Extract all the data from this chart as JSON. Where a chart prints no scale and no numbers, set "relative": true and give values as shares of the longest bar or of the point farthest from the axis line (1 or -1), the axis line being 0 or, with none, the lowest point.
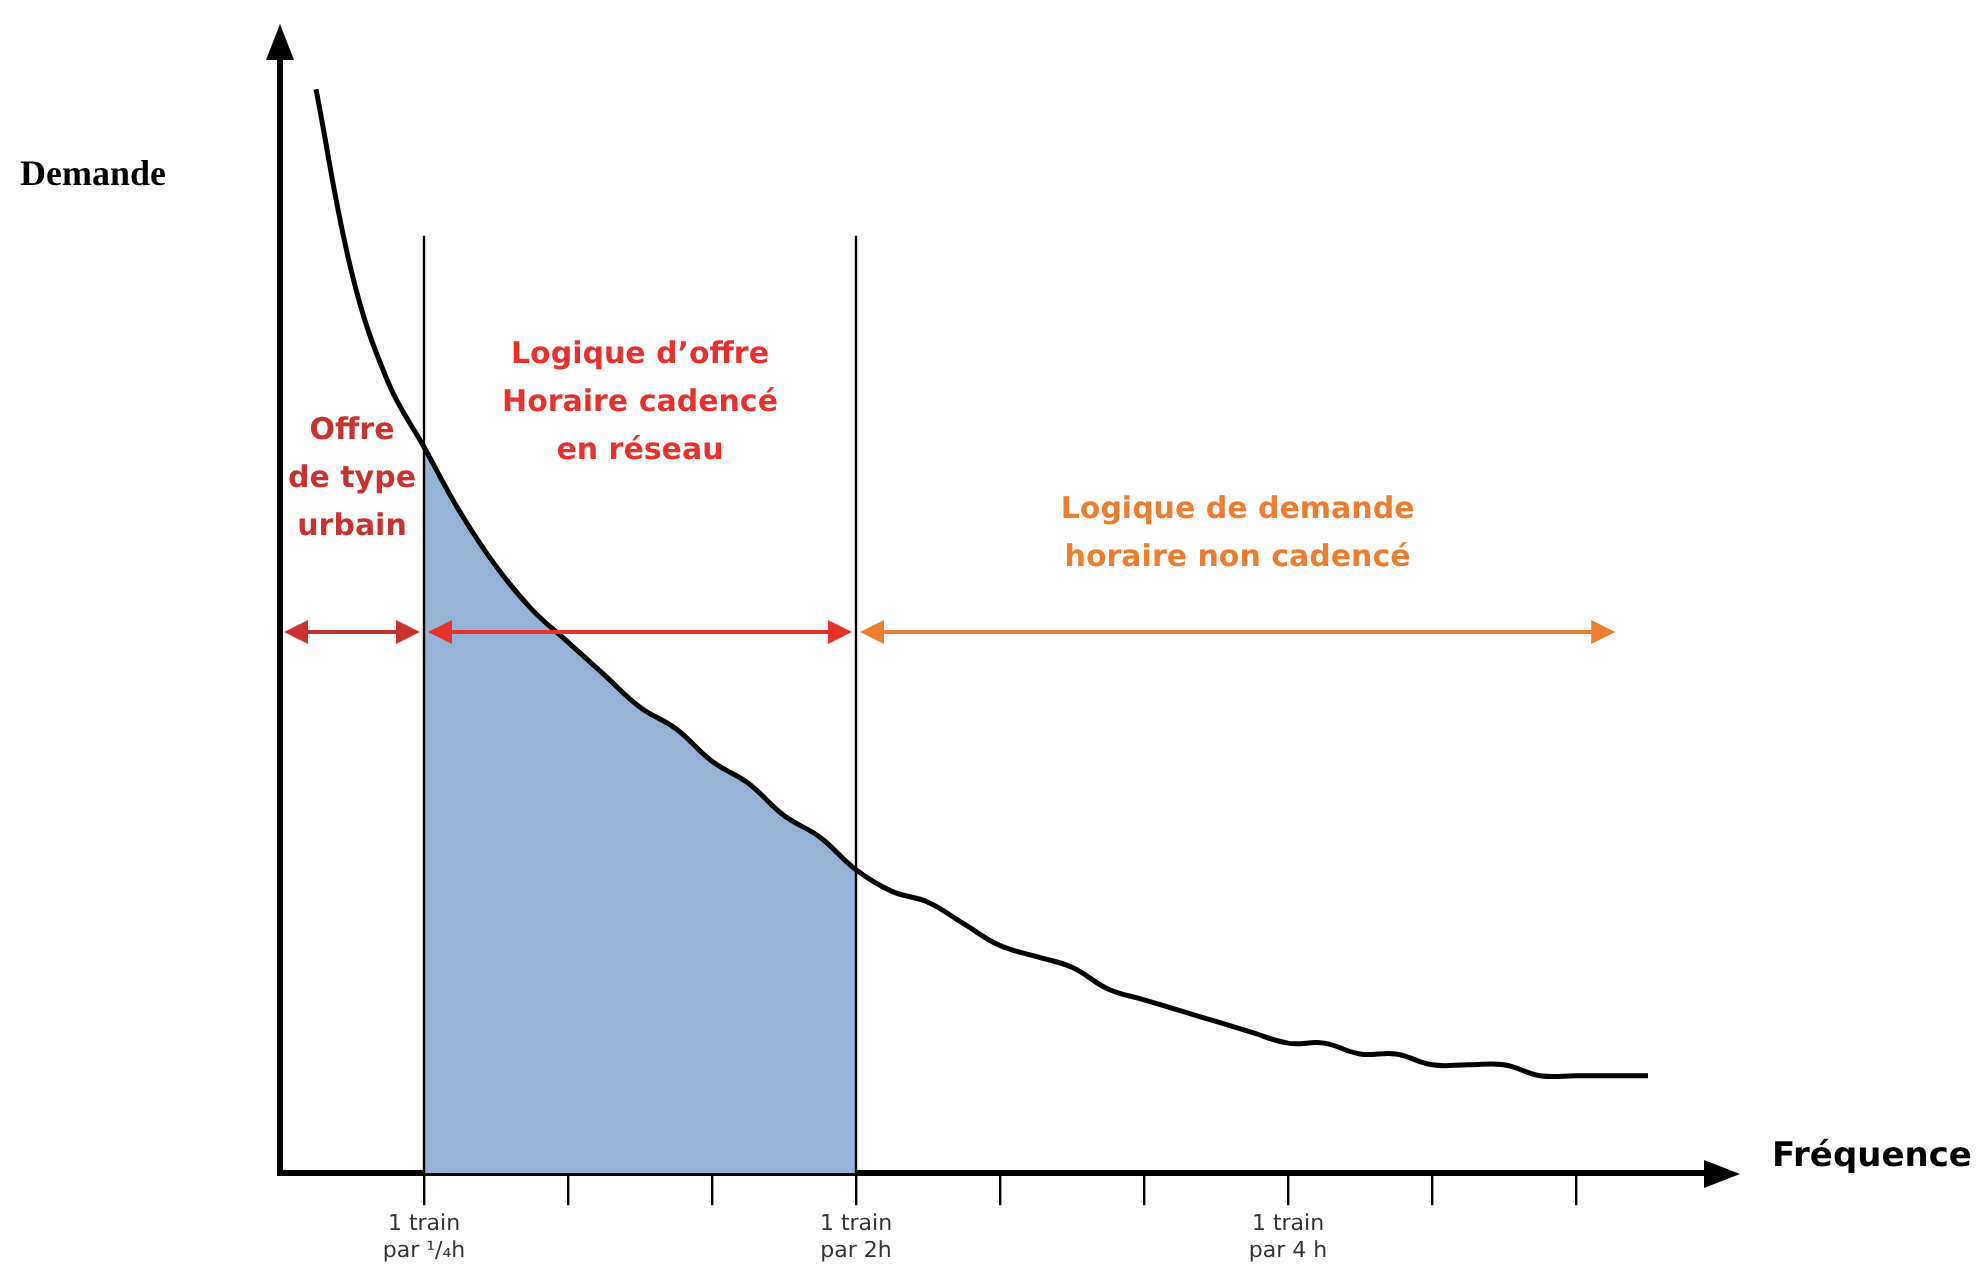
{
  "chart_data": {
    "type": "line",
    "relative": true,
    "xlabel": "Fréquence",
    "ylabel": "Demande",
    "categories": [
      null,
      null,
      null,
      null,
      "1 train\npar ¹/₄h",
      null,
      null,
      null,
      null,
      null,
      null,
      null,
      null,
      null,
      null,
      null,
      "1 train\npar 2h",
      null,
      null,
      null,
      null,
      null,
      null,
      null,
      null,
      null,
      null,
      null,
      "1 train\npar 4 h",
      null,
      null,
      null,
      null,
      null,
      null,
      null,
      null,
      null,
      null,
      null,
      null
    ],
    "grid": false,
    "legend": false,
    "marker": "none",
    "line_style": "solid",
    "series": [
      {
        "type": "line",
        "color": "#000000",
        "values": [
          null,
          1,
          0.83,
          0.73,
          0.67,
          0.61,
          0.56,
          0.52,
          0.49,
          0.46,
          0.43,
          0.41,
          0.38,
          0.36,
          0.33,
          0.31,
          0.28,
          0.26,
          0.25,
          0.23,
          0.21,
          0.2,
          0.19,
          0.17,
          0.16,
          0.15,
          0.14,
          0.13,
          0.12,
          0.12,
          0.11,
          0.11,
          0.1,
          0.1,
          0.1,
          0.09,
          0.09,
          0.09,
          0.09,
          null,
          null
        ]
      },
      {
        "type": "area",
        "color": "#95b3d7",
        "values": [
          null,
          null,
          null,
          null,
          0.67,
          0.61,
          0.56,
          0.52,
          0.49,
          0.46,
          0.43,
          0.41,
          0.38,
          0.36,
          0.33,
          0.31,
          0.28,
          null,
          null,
          null,
          null,
          null,
          null,
          null,
          null,
          null,
          null,
          null,
          null,
          null,
          null,
          null,
          null,
          null,
          null,
          null,
          null,
          null,
          null,
          null,
          null
        ]
      }
    ],
    "ref_lines": [
      {
        "axis": "x",
        "value": "1 train\npar ¹/₄h",
        "color": "#000000"
      },
      {
        "axis": "x",
        "value": "1 train\npar 2h",
        "color": "#000000"
      }
    ],
    "annotations": [
      "Offre\nde type\nurbain",
      "Logique d’offre\nHoraire cadencé\nen réseau",
      "Logique de demande\nhoraire non cadencé"
    ]
  }
}
